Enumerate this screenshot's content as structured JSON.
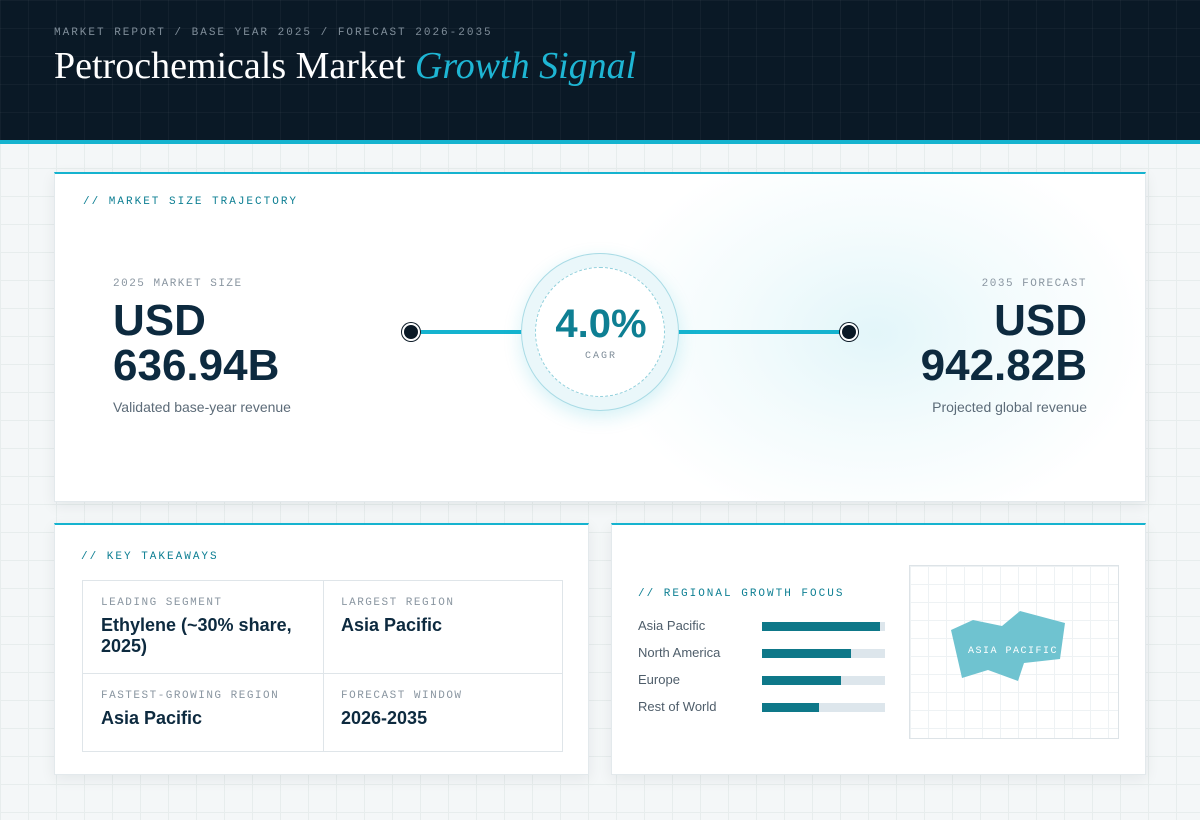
{
  "header": {
    "breadcrumb": "MARKET REPORT / BASE YEAR 2025 / FORECAST 2026-2035",
    "title_main": "Petrochemicals Market ",
    "title_accent": "Growth Signal"
  },
  "trajectory": {
    "section_label": "// MARKET SIZE TRAJECTORY",
    "start": {
      "label": "2025 MARKET SIZE",
      "currency": "USD",
      "value": "636.94B",
      "sub": "Validated base-year revenue"
    },
    "cagr": {
      "value": "4.0%",
      "label": "CAGR"
    },
    "end": {
      "label": "2035 FORECAST",
      "currency": "USD",
      "value": "942.82B",
      "sub": "Projected global revenue"
    }
  },
  "takeaways": {
    "section_label": "// KEY TAKEAWAYS",
    "items": [
      {
        "label": "LEADING SEGMENT",
        "value": "Ethylene (~30% share, 2025)"
      },
      {
        "label": "LARGEST REGION",
        "value": "Asia Pacific"
      },
      {
        "label": "FASTEST-GROWING REGION",
        "value": "Asia Pacific"
      },
      {
        "label": "FORECAST WINDOW",
        "value": "2026-2035"
      }
    ]
  },
  "regional": {
    "section_label": "// REGIONAL GROWTH FOCUS",
    "regions": [
      {
        "name": "Asia Pacific",
        "level": 0.96
      },
      {
        "name": "North America",
        "level": 0.72
      },
      {
        "name": "Europe",
        "level": 0.64
      },
      {
        "name": "Rest of World",
        "level": 0.46
      }
    ],
    "map_label": "ASIA PACIFIC"
  },
  "colors": {
    "accent": "#15b3cf",
    "teal": "#0e7f93",
    "navy": "#0a1926",
    "bar_fill": "#0e7889",
    "map_shape": "#6fc3d0"
  }
}
